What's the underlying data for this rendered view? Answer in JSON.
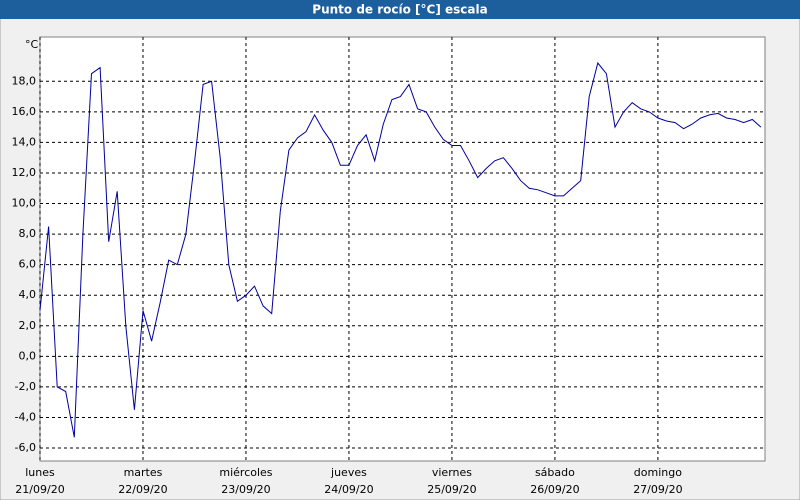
{
  "chart_data": {
    "type": "line",
    "title": "Punto de rocío [°C] escala",
    "y_unit": "°C",
    "xlim": [
      0,
      7.04
    ],
    "xticks": [
      {
        "value": 0,
        "label": "lunes",
        "sublabel": "21/09/20"
      },
      {
        "value": 1,
        "label": "martes",
        "sublabel": "22/09/20"
      },
      {
        "value": 2,
        "label": "miércoles",
        "sublabel": "23/09/20"
      },
      {
        "value": 3,
        "label": "jueves",
        "sublabel": "24/09/20"
      },
      {
        "value": 4,
        "label": "viernes",
        "sublabel": "25/09/20"
      },
      {
        "value": 5,
        "label": "sábado",
        "sublabel": "26/09/20"
      },
      {
        "value": 6,
        "label": "domingo",
        "sublabel": "27/09/20"
      }
    ],
    "ylim": [
      -6.85,
      20.9
    ],
    "yticks": [
      {
        "value": -6,
        "label": "-6,0"
      },
      {
        "value": -4,
        "label": "-4,0"
      },
      {
        "value": -2,
        "label": "-2,0"
      },
      {
        "value": 0,
        "label": "0,0"
      },
      {
        "value": 2,
        "label": "2,0"
      },
      {
        "value": 4,
        "label": "4,0"
      },
      {
        "value": 6,
        "label": "6,0"
      },
      {
        "value": 8,
        "label": "8,0"
      },
      {
        "value": 10,
        "label": "10,0"
      },
      {
        "value": 12,
        "label": "12,0"
      },
      {
        "value": 14,
        "label": "14,0"
      },
      {
        "value": 16,
        "label": "16,0"
      },
      {
        "value": 18,
        "label": "18,0"
      }
    ],
    "grid": true,
    "series": [
      {
        "color": "#0000a0",
        "values": [
          3.0,
          8.5,
          -2.0,
          -2.3,
          -5.3,
          8.0,
          18.5,
          18.9,
          7.5,
          10.8,
          2.0,
          -3.5,
          3.0,
          1.0,
          3.5,
          6.3,
          6.0,
          8.0,
          12.7,
          17.8,
          18.0,
          13.0,
          6.0,
          3.6,
          4.0,
          4.6,
          3.3,
          2.8,
          9.5,
          13.5,
          14.3,
          14.7,
          15.8,
          14.8,
          14.0,
          12.5,
          12.5,
          13.8,
          14.5,
          12.8,
          15.2,
          16.8,
          17.0,
          17.8,
          16.2,
          16.0,
          15.0,
          14.2,
          13.8,
          13.8,
          12.8,
          11.7,
          12.3,
          12.8,
          13.0,
          12.3,
          11.5,
          11.0,
          10.9,
          10.7,
          10.5,
          10.5,
          11.0,
          11.5,
          17.0,
          19.2,
          18.5,
          15.0,
          16.0,
          16.6,
          16.2,
          16.0,
          15.6,
          15.4,
          15.3,
          14.9,
          15.2,
          15.6,
          15.8,
          15.9,
          15.6,
          15.5,
          15.3,
          15.5,
          15.0
        ]
      }
    ]
  }
}
